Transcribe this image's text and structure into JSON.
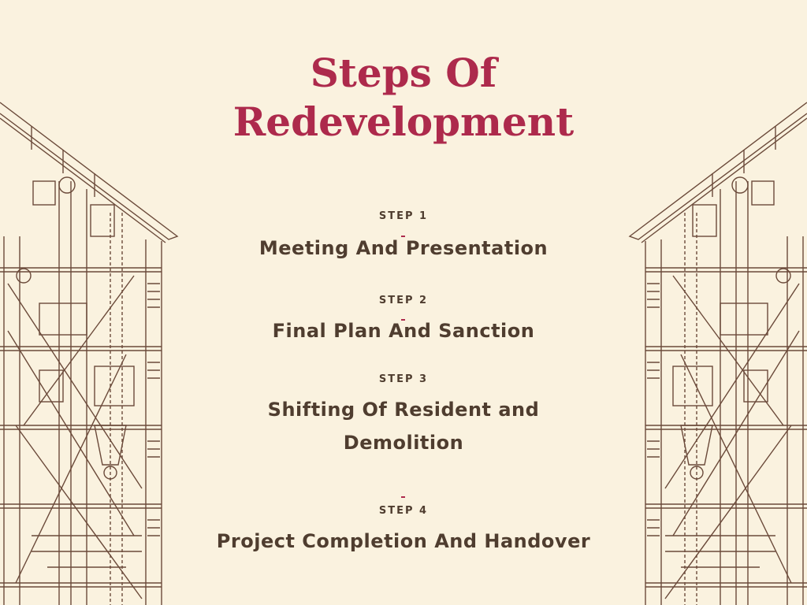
{
  "title": "Steps Of Redevelopment",
  "steps": [
    {
      "label": "STEP 1",
      "title": "Meeting And Presentation"
    },
    {
      "label": "STEP 2",
      "title": "Final Plan And Sanction"
    },
    {
      "label": "STEP 3",
      "title": "Shifting Of Resident and Demolition"
    },
    {
      "label": "STEP 4",
      "title": "Project Completion And Handover"
    }
  ],
  "colors": {
    "background": "#faf2df",
    "title": "#ad2a4c",
    "text": "#4f3d2f",
    "sketch": "#6b4a3a"
  },
  "decorations": [
    "building-sketch-left",
    "building-sketch-right"
  ]
}
